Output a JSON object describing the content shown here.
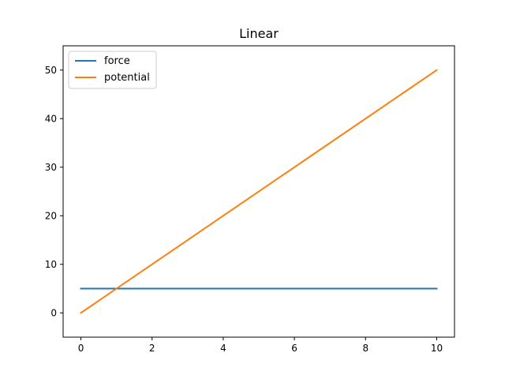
{
  "chart_data": {
    "type": "line",
    "title": "Linear",
    "xlabel": "",
    "ylabel": "",
    "xlim": [
      -0.5,
      10.5
    ],
    "ylim": [
      -5,
      55
    ],
    "xticks": [
      0,
      2,
      4,
      6,
      8,
      10
    ],
    "yticks": [
      0,
      10,
      20,
      30,
      40,
      50
    ],
    "xtick_labels": [
      "0",
      "2",
      "4",
      "6",
      "8",
      "10"
    ],
    "ytick_labels": [
      "0",
      "10",
      "20",
      "30",
      "40",
      "50"
    ],
    "grid": false,
    "legend_position": "upper-left",
    "series": [
      {
        "name": "force",
        "color": "#1f77b4",
        "x": [
          0,
          10
        ],
        "y": [
          5,
          5
        ]
      },
      {
        "name": "potential",
        "color": "#ff7f0e",
        "x": [
          0,
          10
        ],
        "y": [
          0,
          50
        ]
      }
    ]
  }
}
